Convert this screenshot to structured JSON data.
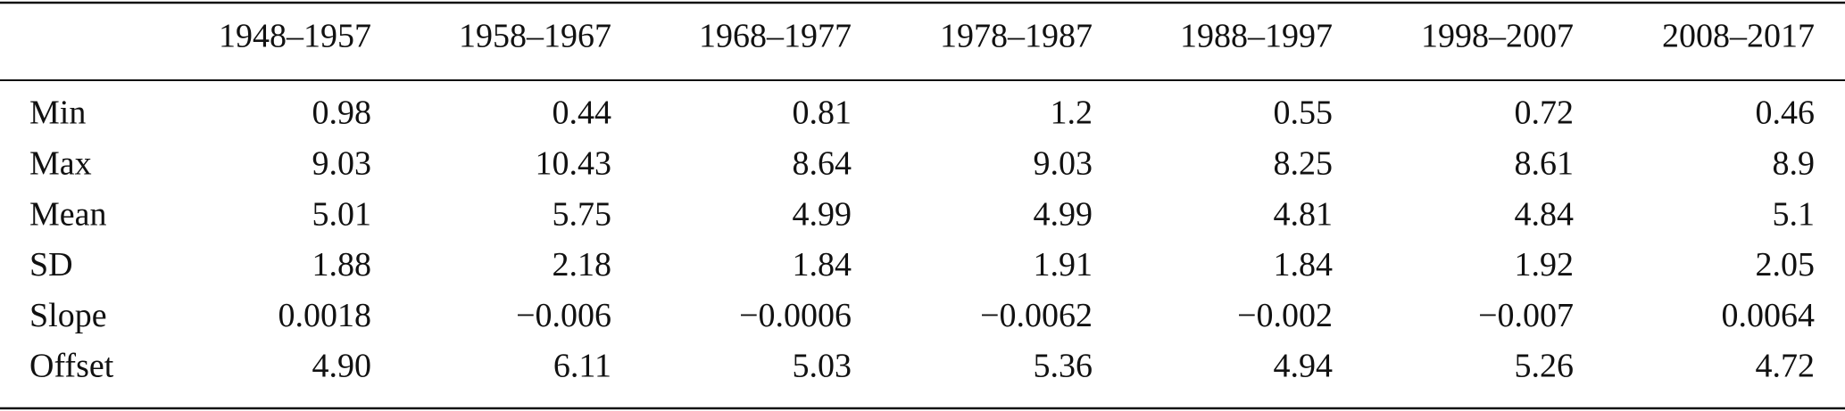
{
  "table": {
    "header": [
      "1948–1957",
      "1958–1967",
      "1968–1977",
      "1978–1987",
      "1988–1997",
      "1998–2007",
      "2008–2017"
    ],
    "rows": [
      [
        "Min",
        "0.98",
        "0.44",
        "0.81",
        "1.2",
        "0.55",
        "0.72",
        "0.46"
      ],
      [
        "Max",
        "9.03",
        "10.43",
        "8.64",
        "9.03",
        "8.25",
        "8.61",
        "8.9"
      ],
      [
        "Mean",
        "5.01",
        "5.75",
        "4.99",
        "4.99",
        "4.81",
        "4.84",
        "5.1"
      ],
      [
        "SD",
        "1.88",
        "2.18",
        "1.84",
        "1.91",
        "1.84",
        "1.92",
        "2.05"
      ],
      [
        "Slope",
        "0.0018",
        "−0.006",
        "−0.0006",
        "−0.0062",
        "−0.002",
        "−0.007",
        "0.0064"
      ],
      [
        "Offset",
        "4.90",
        "6.11",
        "5.03",
        "5.36",
        "4.94",
        "5.26",
        "4.72"
      ]
    ]
  }
}
